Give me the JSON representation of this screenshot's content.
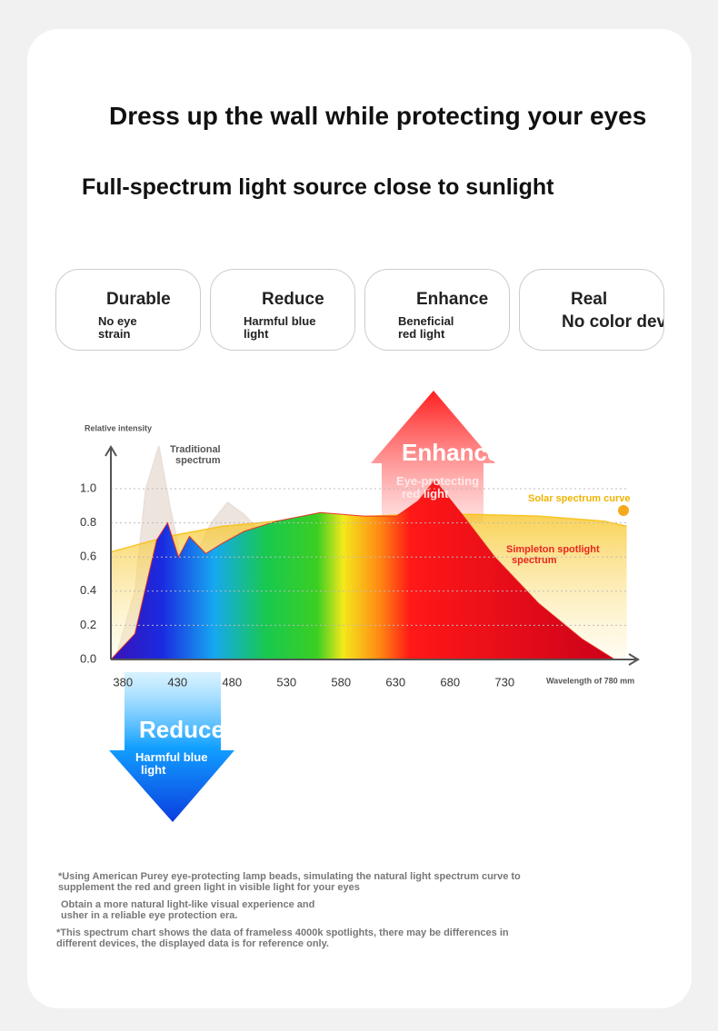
{
  "header": {
    "title": "Dress up the wall while protecting your eyes",
    "subtitle": "Full-spectrum light source close to sunlight"
  },
  "features": [
    {
      "title": "Durable",
      "text": "No eye strain"
    },
    {
      "title": "Reduce",
      "text": "Harmful blue light"
    },
    {
      "title": "Enhance",
      "text": "Beneficial red light"
    },
    {
      "title": "Real",
      "text": "No color deviation"
    }
  ],
  "chart_data": {
    "type": "area",
    "ylabel": "Relative intensity",
    "xlabel": "Wavelength of 780 mm",
    "xlim": [
      368,
      850
    ],
    "ylim": [
      0,
      1.25
    ],
    "xticks": [
      380,
      430,
      480,
      530,
      580,
      630,
      680,
      730
    ],
    "yticks": [
      {
        "value": 0,
        "label": "0.0"
      },
      0.2,
      0.4,
      0.6,
      0.8,
      {
        "value": 1,
        "label": "1.0"
      }
    ],
    "grid": true,
    "series": [
      {
        "name": "Traditional spectrum",
        "color": "#e8ddd6",
        "x": [
          372,
          390,
          400,
          412,
          422,
          432,
          445,
          460,
          475,
          490,
          505
        ],
        "values": [
          0,
          0.4,
          1.0,
          1.25,
          0.9,
          0.6,
          0.6,
          0.8,
          0.92,
          0.85,
          0.75
        ]
      },
      {
        "name": "Solar spectrum curve",
        "color": "#f7c21b",
        "x": [
          368,
          420,
          470,
          520,
          580,
          640,
          700,
          760,
          820,
          841
        ],
        "values": [
          0.63,
          0.72,
          0.78,
          0.81,
          0.83,
          0.85,
          0.85,
          0.84,
          0.81,
          0.78
        ]
      },
      {
        "name": "Simpleton spotlight spectrum",
        "color": "#e8261c",
        "x": [
          368,
          390,
          410,
          420,
          430,
          440,
          455,
          470,
          490,
          520,
          560,
          600,
          630,
          650,
          665,
          690,
          720,
          760,
          800,
          830
        ],
        "values": [
          0,
          0.15,
          0.7,
          0.8,
          0.6,
          0.72,
          0.62,
          0.68,
          0.75,
          0.81,
          0.86,
          0.84,
          0.84,
          0.93,
          1.05,
          0.85,
          0.6,
          0.33,
          0.12,
          0
        ]
      }
    ],
    "annotations": {
      "enhance": "Enhance",
      "enhance_text": "Eye-protecting red light",
      "reduce": "Reduce",
      "reduce_text": "Harmful blue light"
    }
  },
  "notes": [
    "*Using American Purey eye-protecting lamp beads, simulating the natural light spectrum curve to supplement the red and green light in visible light for your eyes",
    "Obtain a more natural light-like visual experience and usher in a reliable eye protection era.",
    "*This spectrum chart shows the data of frameless 4000k spotlights, there may be differences in different devices, the displayed data is for reference only."
  ]
}
